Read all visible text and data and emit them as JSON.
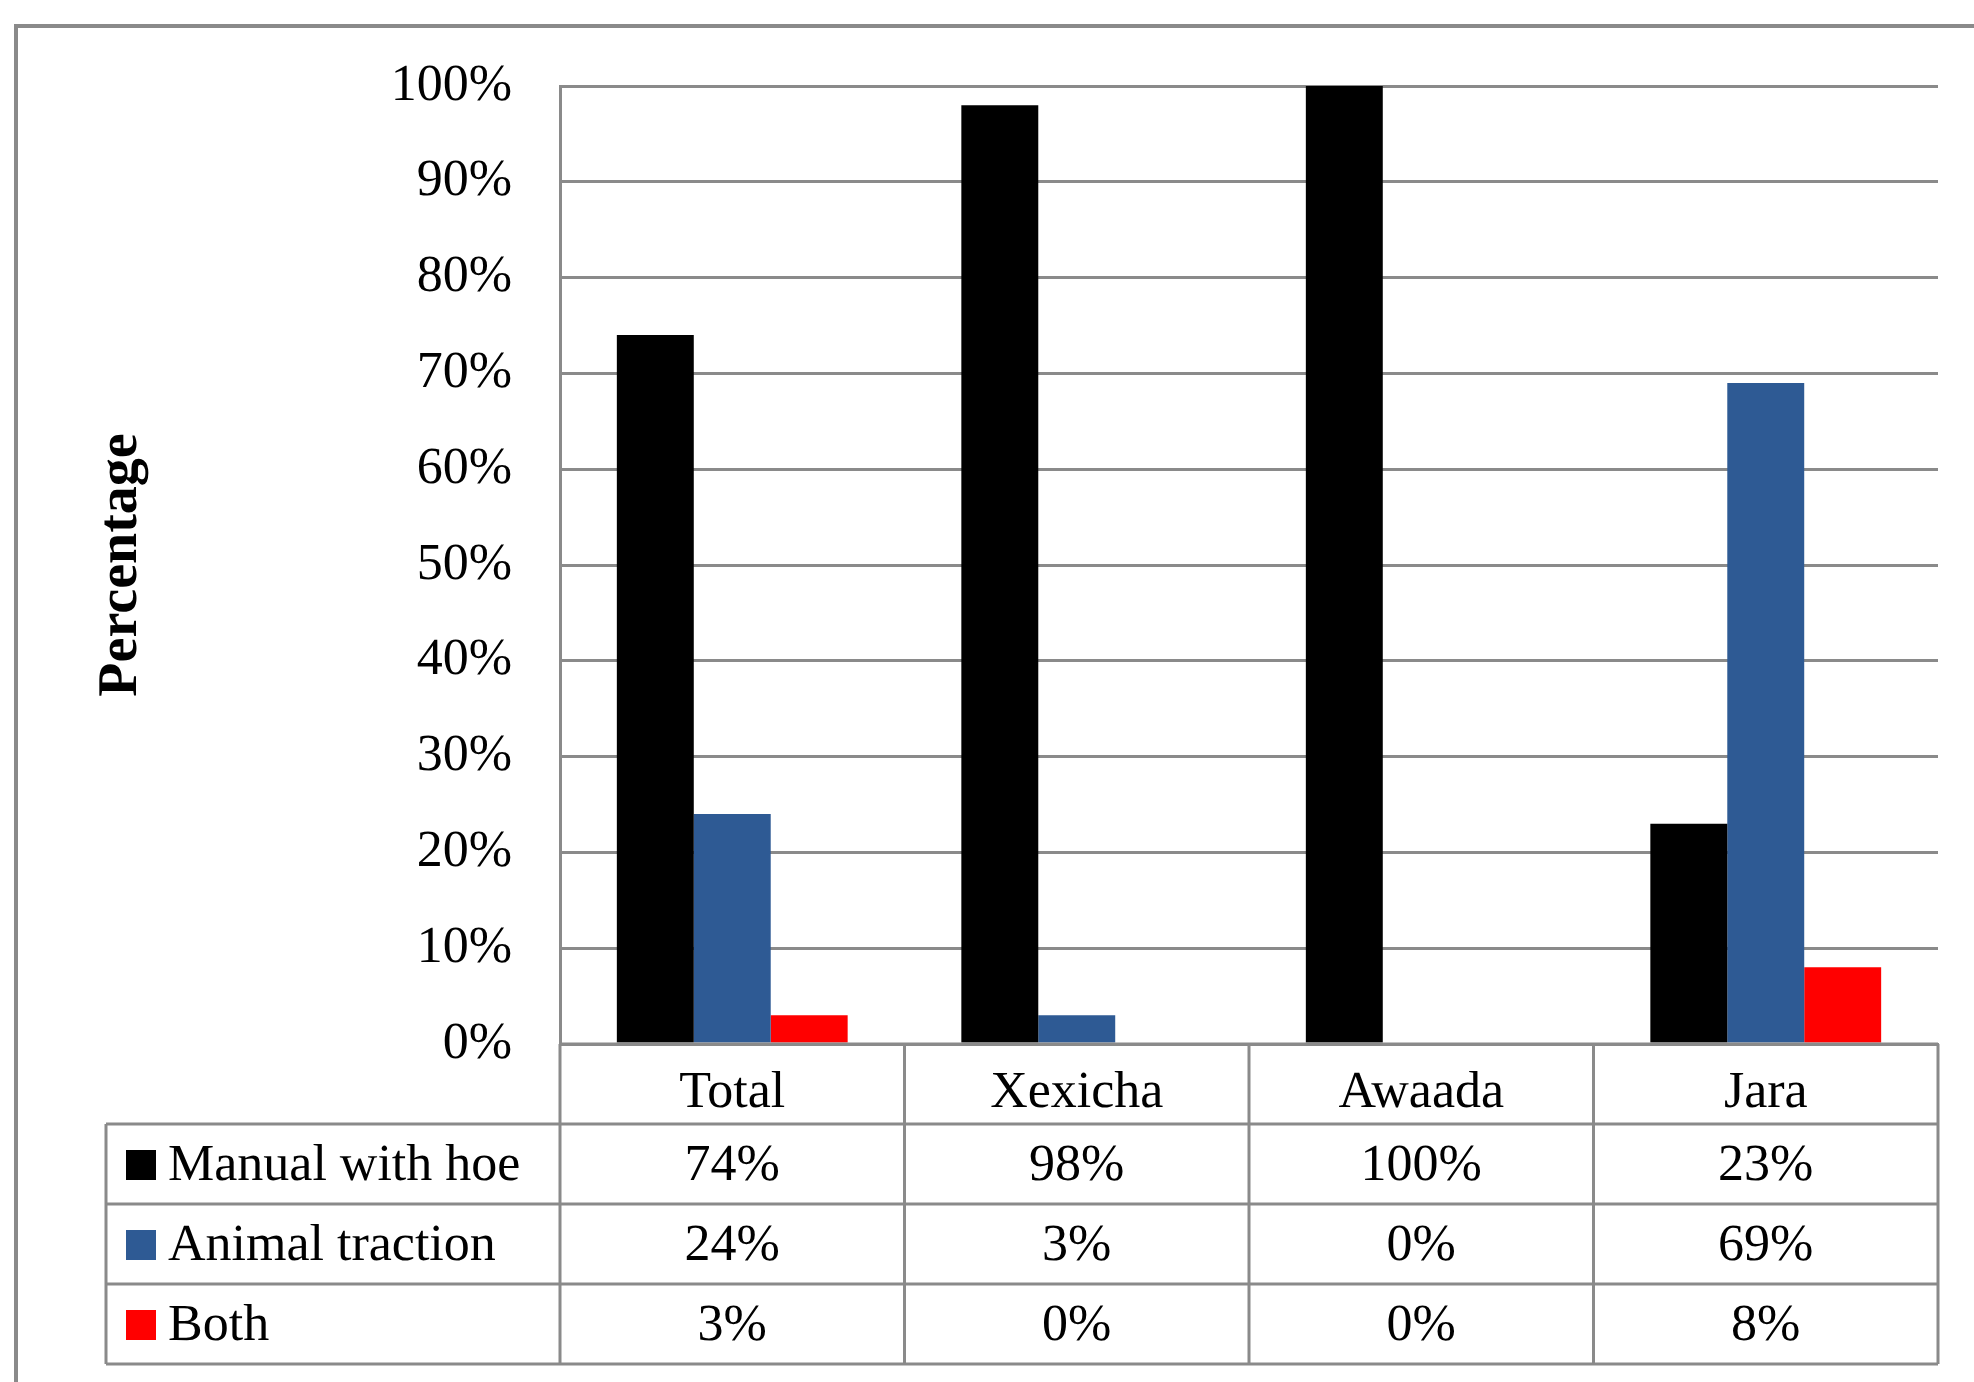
{
  "chart_data": {
    "type": "bar",
    "ylabel": "Percentage",
    "categories": [
      "Total",
      "Xexicha",
      "Awaada",
      "Jara"
    ],
    "series": [
      {
        "name": "Manual with hoe",
        "color": "#000000",
        "values": [
          74,
          98,
          100,
          23
        ],
        "value_labels": [
          "74%",
          "98%",
          "100%",
          "23%"
        ]
      },
      {
        "name": "Animal traction",
        "color": "#2e5a94",
        "values": [
          24,
          3,
          0,
          69
        ],
        "value_labels": [
          "24%",
          "3%",
          "0%",
          "69%"
        ]
      },
      {
        "name": "Both",
        "color": "#ff0000",
        "values": [
          3,
          0,
          0,
          8
        ],
        "value_labels": [
          "3%",
          "0%",
          "0%",
          "8%"
        ]
      }
    ],
    "ylim": [
      0,
      100
    ],
    "yticks": [
      {
        "value": 0,
        "label": "0%"
      },
      {
        "value": 10,
        "label": "10%"
      },
      {
        "value": 20,
        "label": "20%"
      },
      {
        "value": 30,
        "label": "30%"
      },
      {
        "value": 40,
        "label": "40%"
      },
      {
        "value": 50,
        "label": "50%"
      },
      {
        "value": 60,
        "label": "60%"
      },
      {
        "value": 70,
        "label": "70%"
      },
      {
        "value": 80,
        "label": "80%"
      },
      {
        "value": 90,
        "label": "90%"
      },
      {
        "value": 100,
        "label": "100%"
      }
    ],
    "grid": "y",
    "legend": "bottom"
  }
}
